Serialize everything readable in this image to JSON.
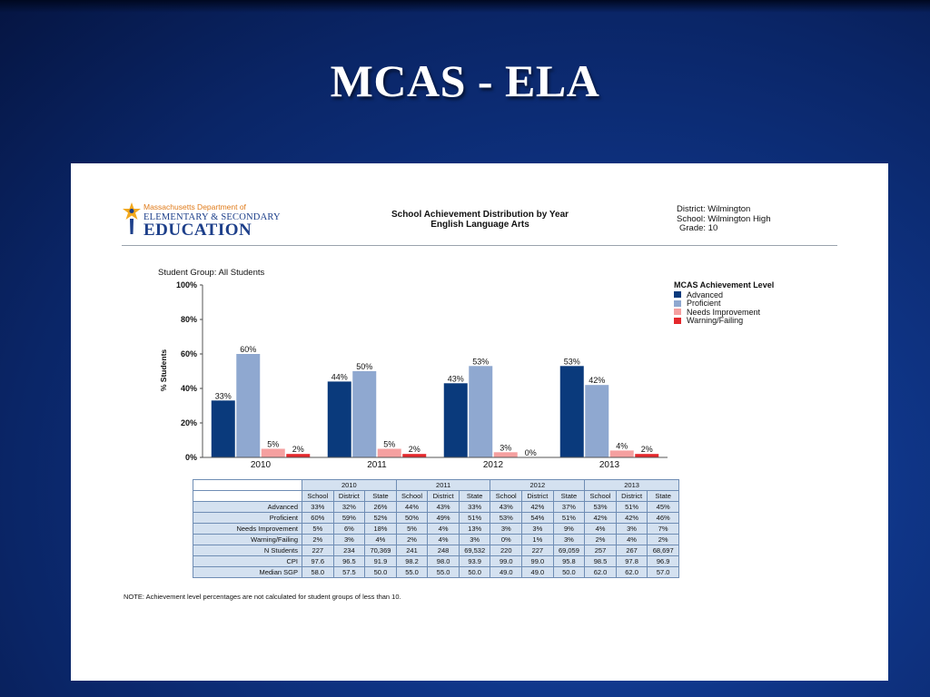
{
  "slide": {
    "title": "MCAS - ELA"
  },
  "header": {
    "logo": {
      "line1": "Massachusetts Department of",
      "line2": "ELEMENTARY & SECONDARY",
      "line3": "EDUCATION"
    },
    "report_title_line1": "School Achievement Distribution by Year",
    "report_title_line2": "English Language Arts",
    "district": "District: Wilmington",
    "school": "School: Wilmington High",
    "grade": "Grade: 10"
  },
  "student_group": "Student Group: All Students",
  "chart_data": {
    "type": "bar",
    "title": "",
    "ylabel": "% Students",
    "ylim": [
      0,
      100
    ],
    "yticks": [
      0,
      20,
      40,
      60,
      80,
      100
    ],
    "categories": [
      "2010",
      "2011",
      "2012",
      "2013"
    ],
    "series": [
      {
        "name": "Advanced",
        "color": "#0a3a7c",
        "values": [
          33,
          44,
          43,
          53
        ]
      },
      {
        "name": "Proficient",
        "color": "#8fa8d0",
        "values": [
          60,
          50,
          53,
          42
        ]
      },
      {
        "name": "Needs Improvement",
        "color": "#f5a0a0",
        "values": [
          5,
          5,
          3,
          4
        ]
      },
      {
        "name": "Warning/Failing",
        "color": "#e4282c",
        "values": [
          2,
          2,
          0,
          2
        ]
      }
    ],
    "legend": {
      "title": "MCAS Achievement Level",
      "position": "right"
    },
    "grid": false
  },
  "table": {
    "years": [
      "2010",
      "2011",
      "2012",
      "2013"
    ],
    "subheaders": [
      "School",
      "District",
      "State"
    ],
    "rows": [
      {
        "label": "Advanced",
        "values": [
          "33%",
          "32%",
          "26%",
          "44%",
          "43%",
          "33%",
          "43%",
          "42%",
          "37%",
          "53%",
          "51%",
          "45%"
        ]
      },
      {
        "label": "Proficient",
        "values": [
          "60%",
          "59%",
          "52%",
          "50%",
          "49%",
          "51%",
          "53%",
          "54%",
          "51%",
          "42%",
          "42%",
          "46%"
        ]
      },
      {
        "label": "Needs Improvement",
        "values": [
          "5%",
          "6%",
          "18%",
          "5%",
          "4%",
          "13%",
          "3%",
          "3%",
          "9%",
          "4%",
          "3%",
          "7%"
        ]
      },
      {
        "label": "Warning/Failing",
        "values": [
          "2%",
          "3%",
          "4%",
          "2%",
          "4%",
          "3%",
          "0%",
          "1%",
          "3%",
          "2%",
          "4%",
          "2%"
        ]
      },
      {
        "label": "N Students",
        "values": [
          "227",
          "234",
          "70,369",
          "241",
          "248",
          "69,532",
          "220",
          "227",
          "69,059",
          "257",
          "267",
          "68,697"
        ]
      },
      {
        "label": "CPI",
        "values": [
          "97.6",
          "96.5",
          "91.9",
          "98.2",
          "98.0",
          "93.9",
          "99.0",
          "99.0",
          "95.8",
          "98.5",
          "97.8",
          "96.9"
        ]
      },
      {
        "label": "Median SGP",
        "values": [
          "58.0",
          "57.5",
          "50.0",
          "55.0",
          "55.0",
          "50.0",
          "49.0",
          "49.0",
          "50.0",
          "62.0",
          "62.0",
          "57.0"
        ]
      }
    ]
  },
  "note": "NOTE: Achievement level percentages are not calculated for student groups of less than 10."
}
